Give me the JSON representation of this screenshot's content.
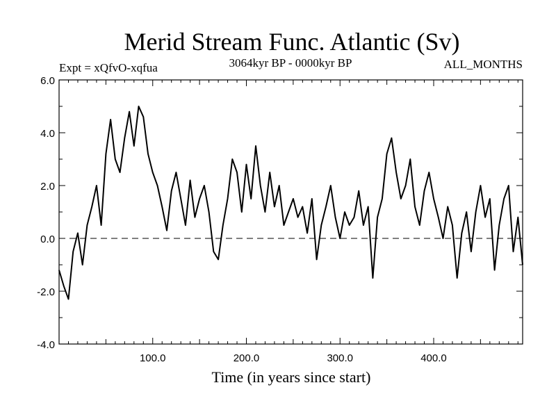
{
  "chart_data": {
    "type": "line",
    "title": "Merid Stream Func. Atlantic (Sv)",
    "subtitle_left": "Expt = xQfvO-xqfua",
    "subtitle_center": "3064kyr BP - 0000kyr BP",
    "subtitle_right": "ALL_MONTHS",
    "xlabel": "Time (in years since start)",
    "ylabel": "",
    "xlim": [
      0,
      495
    ],
    "ylim": [
      -4.0,
      6.0
    ],
    "xticks": [
      100,
      200,
      300,
      400
    ],
    "xtick_labels": [
      "100.0",
      "200.0",
      "300.0",
      "400.0"
    ],
    "yticks": [
      -4,
      -2,
      0,
      2,
      4,
      6
    ],
    "ytick_labels": [
      "-4.0",
      "-2.0",
      "0.0",
      "2.0",
      "4.0",
      "6.0"
    ],
    "reference_line": {
      "y": 0.0,
      "style": "dashed"
    },
    "color": "#000000",
    "series": [
      {
        "name": "Merid Stream Func. Atlantic",
        "x_start": 0,
        "x_step": 5,
        "values": [
          -1.2,
          -1.8,
          -2.3,
          -0.5,
          0.2,
          -1.0,
          0.5,
          1.2,
          2.0,
          0.5,
          3.2,
          4.5,
          3.0,
          2.5,
          3.8,
          4.8,
          3.5,
          5.0,
          4.6,
          3.2,
          2.5,
          2.0,
          1.2,
          0.3,
          1.8,
          2.5,
          1.5,
          0.5,
          2.2,
          0.8,
          1.5,
          2.0,
          1.0,
          -0.5,
          -0.8,
          0.5,
          1.5,
          3.0,
          2.5,
          1.0,
          2.8,
          1.5,
          3.5,
          2.0,
          1.0,
          2.5,
          1.2,
          2.0,
          0.5,
          1.0,
          1.5,
          0.8,
          1.2,
          0.2,
          1.5,
          -0.8,
          0.5,
          1.2,
          2.0,
          0.8,
          0.0,
          1.0,
          0.5,
          0.8,
          1.8,
          0.5,
          1.2,
          -1.5,
          0.8,
          1.5,
          3.2,
          3.8,
          2.5,
          1.5,
          2.0,
          3.0,
          1.2,
          0.5,
          1.8,
          2.5,
          1.5,
          0.8,
          0.0,
          1.2,
          0.5,
          -1.5,
          0.2,
          1.0,
          -0.5,
          1.0,
          2.0,
          0.8,
          1.5,
          -1.2,
          0.5,
          1.5,
          2.0,
          -0.5,
          0.8,
          -1.0
        ]
      }
    ]
  }
}
